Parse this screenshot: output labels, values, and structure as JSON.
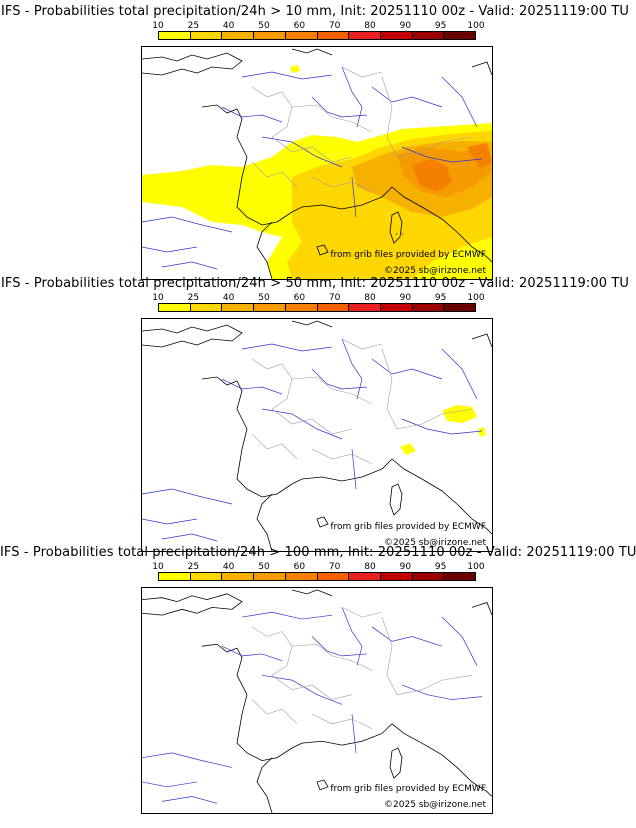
{
  "colorbar": {
    "ticks": [
      "10",
      "25",
      "40",
      "50",
      "60",
      "70",
      "80",
      "90",
      "95",
      "100"
    ],
    "colors": [
      "#ffff00",
      "#ffd700",
      "#f5b000",
      "#f59a00",
      "#f58000",
      "#f56000",
      "#e82020",
      "#c00000",
      "#9a0000",
      "#6a0000"
    ]
  },
  "colors": {
    "coast": "#000000",
    "rivers": "#3333cc",
    "borders": "#a0a0a0"
  },
  "panels": [
    {
      "title": "IFS - Probabilities total precipitation/24h > 10 mm, Init: 20251110 00z - Valid: 20251119:00 TU",
      "credit_source": "from grib files provided by ECMWF",
      "credit_copyright": "©2025 sb@irizone.net"
    },
    {
      "title": "IFS - Probabilities total precipitation/24h > 50 mm, Init: 20251110 00z - Valid: 20251119:00 TU",
      "credit_source": "from grib files provided by ECMWF",
      "credit_copyright": "©2025 sb@irizone.net"
    },
    {
      "title": "IFS - Probabilities total precipitation/24h > 100 mm, Init: 20251110 00z - Valid: 20251119:00 TU",
      "credit_source": "from grib files provided by ECMWF",
      "credit_copyright": "©2025 sb@irizone.net"
    }
  ]
}
